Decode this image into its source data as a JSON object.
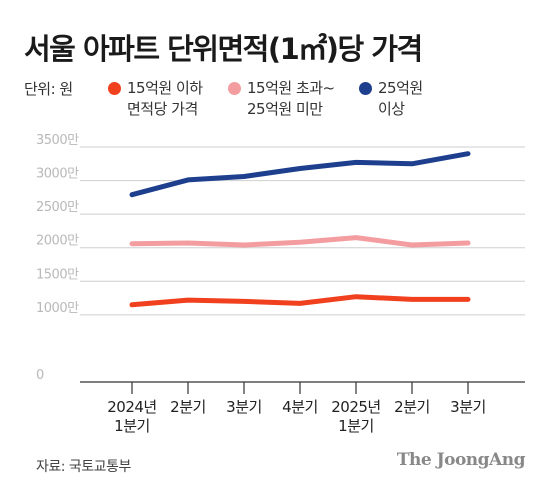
{
  "title": "서울 아파트 단위면적(1㎡)당 가격",
  "legend": {
    "unit_label": "단위: 원",
    "items": [
      {
        "line1": "15억원 이하",
        "line2": "면적당 가격",
        "color": "#f0401e"
      },
      {
        "line1": "15억원 초과~",
        "line2": "25억원 미만",
        "color": "#f49da0"
      },
      {
        "line1": "25억원",
        "line2": "이상",
        "color": "#1e3f8e"
      }
    ]
  },
  "chart_data": {
    "type": "line",
    "x": [
      [
        "2024년",
        "1분기"
      ],
      [
        "2분기"
      ],
      [
        "3분기"
      ],
      [
        "4분기"
      ],
      [
        "2025년",
        "1분기"
      ],
      [
        "2분기"
      ],
      [
        "3분기"
      ]
    ],
    "series": [
      {
        "name": "15억원 이하 면적당 가격",
        "color": "#f0401e",
        "values": [
          1150,
          1220,
          1200,
          1170,
          1270,
          1230,
          1230
        ]
      },
      {
        "name": "15억원 초과~25억원 미만",
        "color": "#f49da0",
        "values": [
          2060,
          2070,
          2040,
          2080,
          2150,
          2040,
          2070
        ]
      },
      {
        "name": "25억원 이상",
        "color": "#1e3f8e",
        "values": [
          2790,
          3010,
          3060,
          3180,
          3270,
          3250,
          3400
        ]
      }
    ],
    "yticks": [
      "0",
      "1000만",
      "1500만",
      "2000만",
      "2500만",
      "3000만",
      "3500만"
    ],
    "ytick_values": [
      0,
      1000,
      1500,
      2000,
      2500,
      3000,
      3500
    ],
    "ylim": [
      0,
      3500
    ],
    "grid": true
  },
  "source": "자료: 국토교통부",
  "brand": "The JoongAng"
}
